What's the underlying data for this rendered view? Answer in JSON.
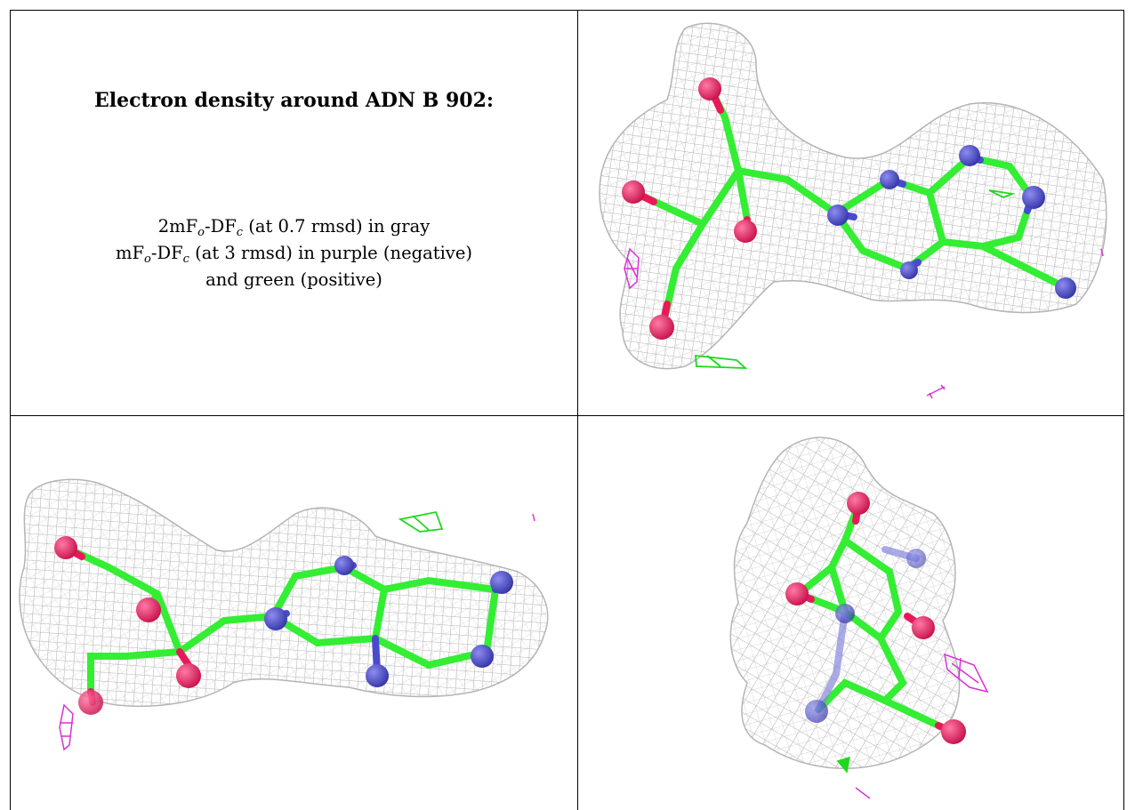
{
  "legend": {
    "title": "Electron density around ADN B 902:",
    "map1_prefix": "2mF",
    "map1_sub1": "o",
    "map1_mid": "-DF",
    "map1_sub2": "c",
    "map1_suffix": " (at 0.7 rmsd) in gray",
    "map2_prefix": "mF",
    "map2_sub1": "o",
    "map2_mid": "-DF",
    "map2_sub2": "c",
    "map2_suffix": " (at 3 rmsd) in purple (negative)",
    "map2_line2": "and green (positive)"
  },
  "colors": {
    "mesh": "#b4b4b4",
    "carbon": "#33ee33",
    "oxygen": "#e8195a",
    "nitrogen": "#4a4ad0",
    "negative_density": "#d832d8",
    "positive_density": "#1ed81e",
    "border": "#000000"
  }
}
